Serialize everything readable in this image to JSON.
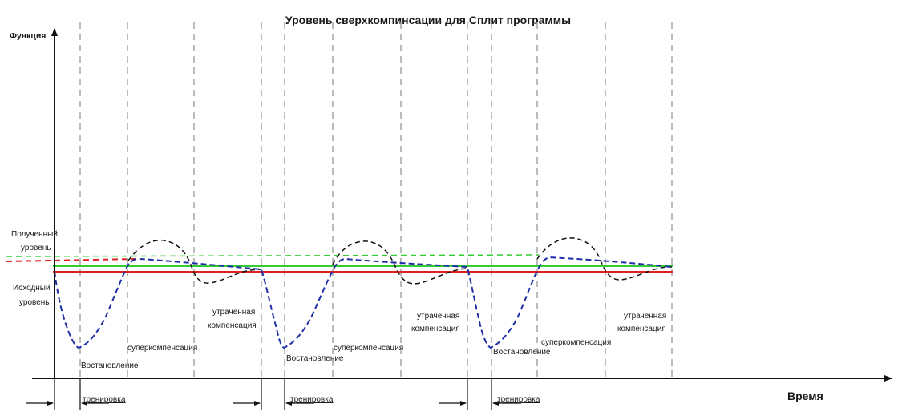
{
  "title": "Уровень сверхкомпинсации для Сплит программы",
  "y_axis_label": "Функция",
  "x_axis_label": "Время",
  "level_labels": {
    "gained_line1": "Полученный",
    "gained_line2": "уровень",
    "initial_line1": "Исходный",
    "initial_line2": "уровень"
  },
  "cycles": [
    {
      "recovery": "Востановление",
      "supercompensation": "суперкомпенсация",
      "lost_line1": "утраченная",
      "lost_line2": "компенсация",
      "training": "тренировка"
    },
    {
      "recovery": "Востановление",
      "supercompensation": "суперкомпенсация",
      "lost_line1": "утраченная",
      "lost_line2": "компенсация",
      "training": "тренировка"
    },
    {
      "recovery": "Востановление",
      "supercompensation": "суперкомпенсация",
      "lost_line1": "утраченная",
      "lost_line2": "компенсация",
      "training": "тренировка"
    }
  ],
  "colors": {
    "initial_level": "#e02020",
    "achieved_level": "#33cc33",
    "blue_curve": "#1f2fa8",
    "black_curve": "#111111",
    "grid_dash": "#a6a6a6",
    "axis": "#111111"
  }
}
